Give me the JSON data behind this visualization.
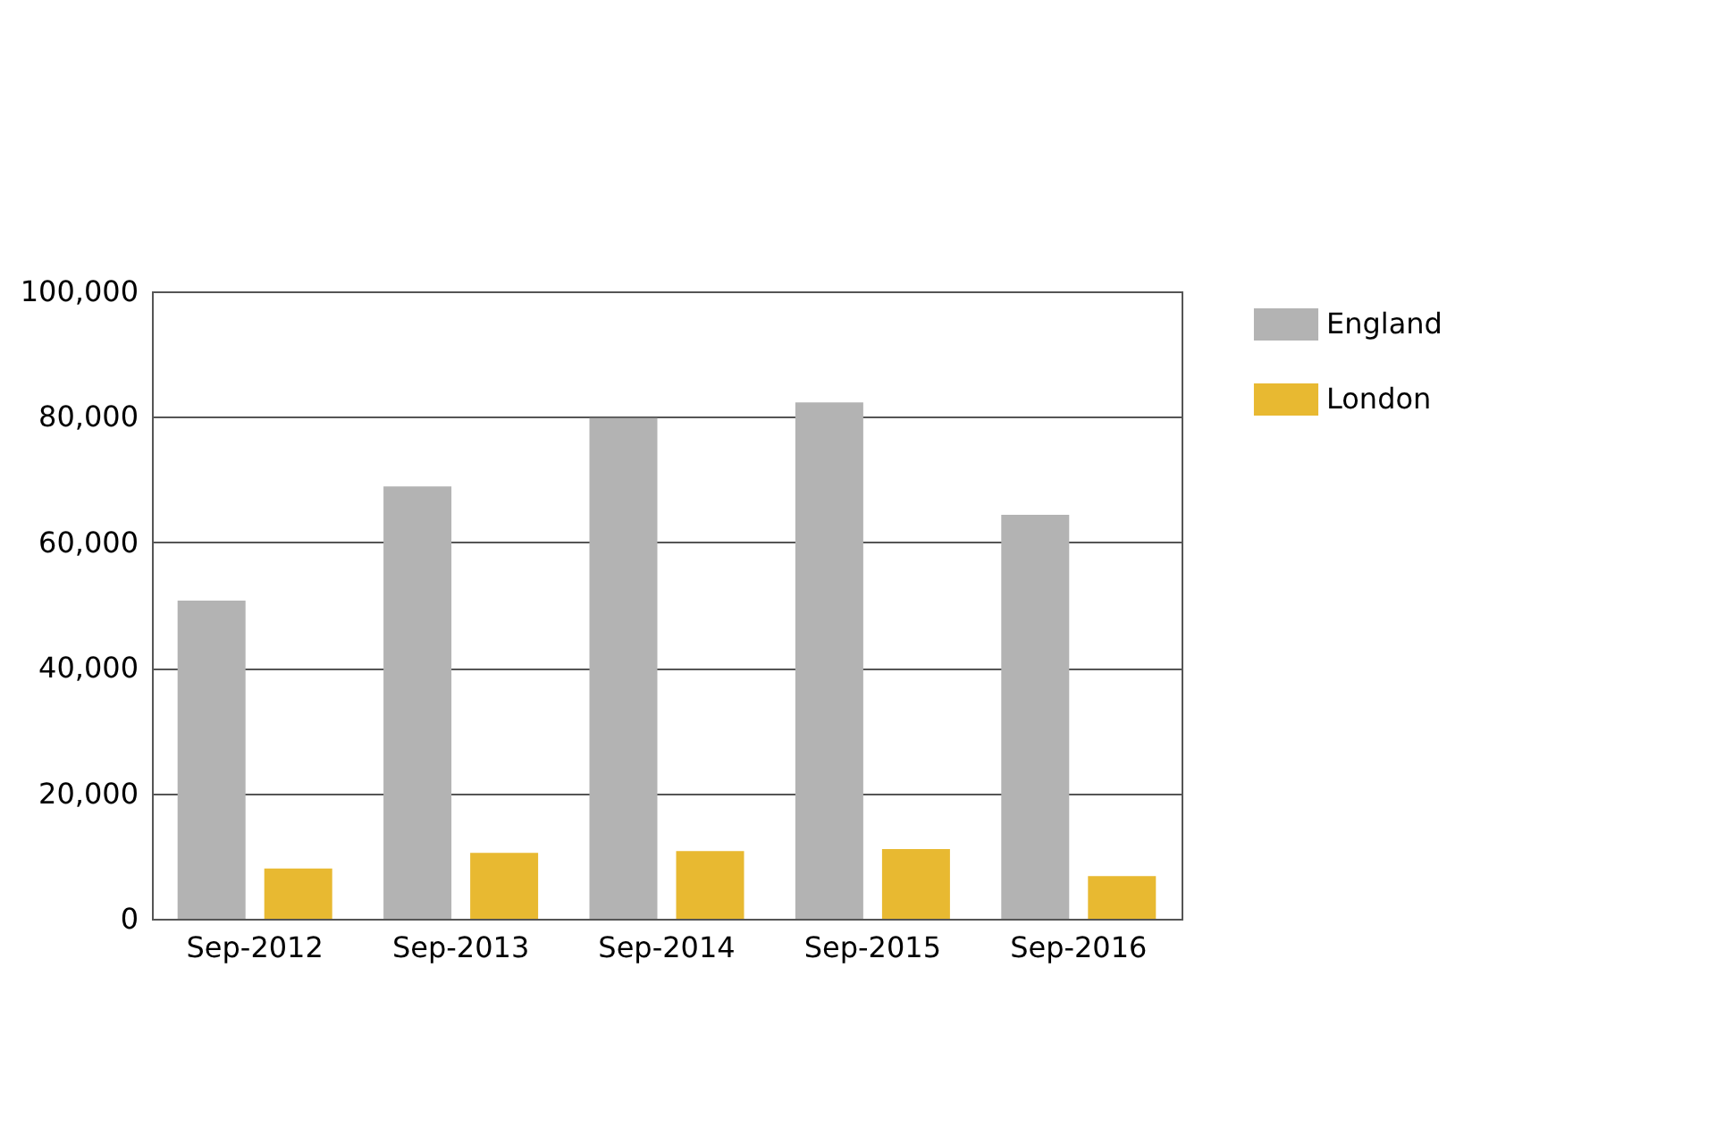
{
  "chart_data": {
    "type": "bar",
    "categories": [
      "Sep-2012",
      "Sep-2013",
      "Sep-2014",
      "Sep-2015",
      "Sep-2016"
    ],
    "series": [
      {
        "name": "England",
        "color": "#b3b3b3",
        "values": [
          50700,
          68900,
          79800,
          82300,
          64400
        ]
      },
      {
        "name": "London",
        "color": "#e8b931",
        "values": [
          8000,
          10500,
          10800,
          11100,
          6800
        ]
      }
    ],
    "ylim": [
      0,
      100000
    ],
    "yticks": [
      0,
      {
        "value": 20000,
        "label": "20,000"
      },
      {
        "value": 40000,
        "label": "40,000"
      },
      {
        "value": 60000,
        "label": "60,000"
      },
      {
        "value": 80000,
        "label": "80,000"
      },
      {
        "value": 100000,
        "label": "100,000"
      }
    ],
    "grid": "y",
    "legend": "top right"
  }
}
